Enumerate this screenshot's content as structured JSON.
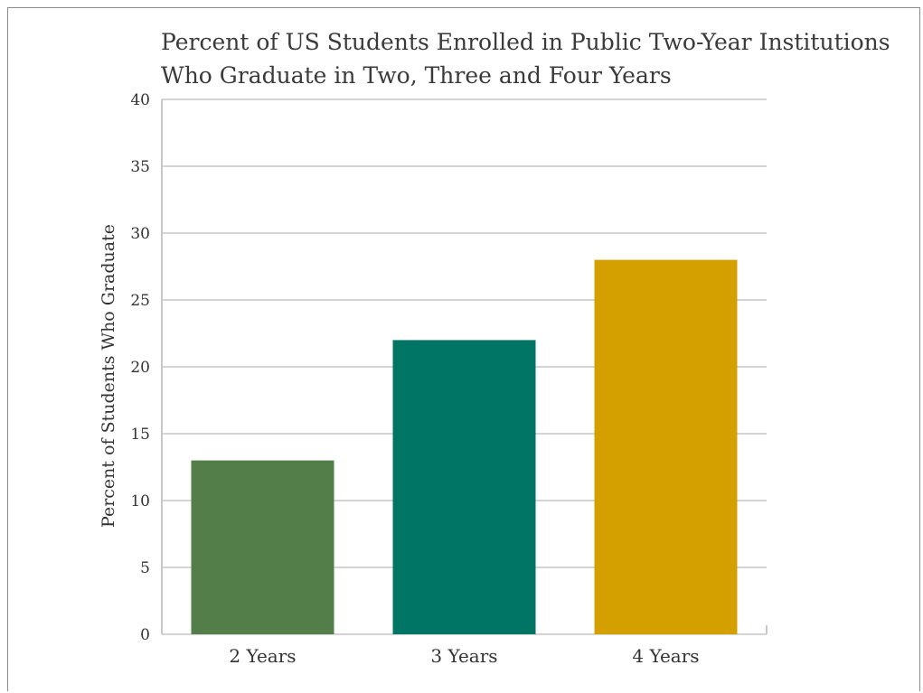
{
  "chart_data": {
    "type": "bar",
    "title_lines": [
      "Percent of US Students Enrolled in Public Two-Year Institutions",
      "Who Graduate in Two, Three and Four Years"
    ],
    "xlabel": "",
    "ylabel": "Percent of Students Who Graduate",
    "categories": [
      "2 Years",
      "3 Years",
      "4 Years"
    ],
    "values": [
      13,
      22,
      28
    ],
    "colors": [
      "#537d49",
      "#007566",
      "#d4a000"
    ],
    "ylim": [
      0,
      40
    ],
    "yticks": [
      0,
      5,
      10,
      15,
      20,
      25,
      30,
      35,
      40
    ],
    "grid": true,
    "legend": "none"
  }
}
